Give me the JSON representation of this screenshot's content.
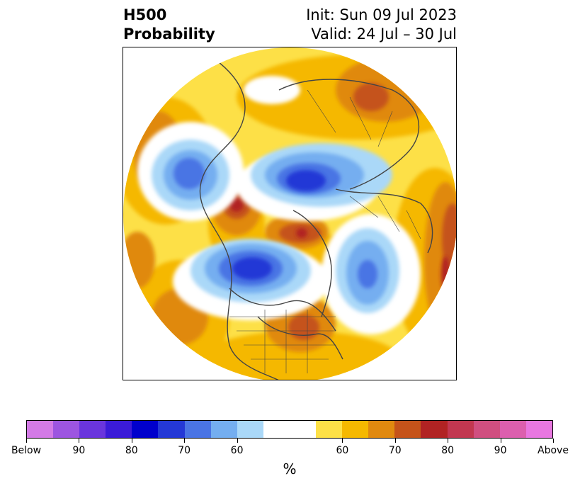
{
  "title": {
    "left_line1": "H500",
    "left_line2": "Probability",
    "right_line1": "Init: Sun 09 Jul 2023",
    "right_line2": "Valid: 24 Jul – 30 Jul"
  },
  "colorbar": {
    "colors": [
      "#d37ae6",
      "#9d55e0",
      "#6a35dd",
      "#3b1bd8",
      "#0000cc",
      "#2438d6",
      "#4a74e4",
      "#74aef0",
      "#aad8f8",
      "#ffffff",
      "#ffffff",
      "#fde047",
      "#f5b800",
      "#e0890f",
      "#c5531a",
      "#b12323",
      "#c23750",
      "#d04f80",
      "#dc5fae",
      "#e877e0"
    ],
    "tick_labels": [
      "Below",
      "90",
      "80",
      "70",
      "60",
      "60",
      "70",
      "80",
      "90",
      "Above"
    ],
    "unit": "%"
  },
  "map": {
    "projection": "north-polar-stereographic",
    "description_colors": {
      "above": "#f5b800",
      "below": "#2438d6"
    }
  }
}
